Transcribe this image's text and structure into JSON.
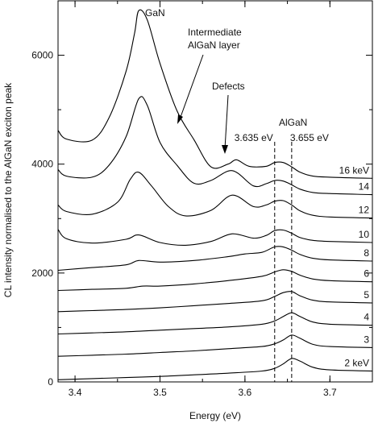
{
  "chart_data": {
    "type": "line",
    "title": "",
    "xlabel": "Energy (eV)",
    "ylabel": "CL intensity normalised to the AlGaN exciton peak",
    "xlim": [
      3.38,
      3.75
    ],
    "ylim": [
      0,
      7000
    ],
    "xticks": [
      3.4,
      3.5,
      3.6,
      3.7
    ],
    "yticks": [
      0,
      2000,
      4000,
      6000
    ],
    "grid": false,
    "reference_lines": [
      {
        "x": 3.635,
        "label": "3.635 eV",
        "style": "dashed"
      },
      {
        "x": 3.655,
        "label": "3.655 eV",
        "style": "dashed"
      }
    ],
    "annotations": [
      {
        "text": "GaN",
        "x": 3.475
      },
      {
        "text": "Intermediate",
        "text2": "AlGaN layer",
        "x": 3.52
      },
      {
        "text": "Defects",
        "x": 3.575
      },
      {
        "text": "AlGaN",
        "x": 3.64
      }
    ],
    "series": [
      {
        "label": "2 keV",
        "points": [
          [
            3.38,
            40
          ],
          [
            3.42,
            60
          ],
          [
            3.46,
            80
          ],
          [
            3.5,
            100
          ],
          [
            3.54,
            130
          ],
          [
            3.58,
            160
          ],
          [
            3.62,
            200
          ],
          [
            3.635,
            250
          ],
          [
            3.645,
            330
          ],
          [
            3.655,
            430
          ],
          [
            3.665,
            380
          ],
          [
            3.68,
            270
          ],
          [
            3.7,
            220
          ],
          [
            3.75,
            200
          ]
        ]
      },
      {
        "label": "3",
        "points": [
          [
            3.38,
            470
          ],
          [
            3.42,
            490
          ],
          [
            3.46,
            510
          ],
          [
            3.5,
            540
          ],
          [
            3.54,
            570
          ],
          [
            3.58,
            610
          ],
          [
            3.62,
            650
          ],
          [
            3.635,
            700
          ],
          [
            3.645,
            770
          ],
          [
            3.655,
            860
          ],
          [
            3.665,
            800
          ],
          [
            3.68,
            690
          ],
          [
            3.7,
            650
          ],
          [
            3.75,
            630
          ]
        ]
      },
      {
        "label": "4",
        "points": [
          [
            3.38,
            880
          ],
          [
            3.42,
            900
          ],
          [
            3.46,
            920
          ],
          [
            3.5,
            950
          ],
          [
            3.54,
            980
          ],
          [
            3.58,
            1010
          ],
          [
            3.62,
            1060
          ],
          [
            3.635,
            1120
          ],
          [
            3.645,
            1200
          ],
          [
            3.655,
            1270
          ],
          [
            3.665,
            1200
          ],
          [
            3.68,
            1100
          ],
          [
            3.7,
            1060
          ],
          [
            3.75,
            1040
          ]
        ]
      },
      {
        "label": "5",
        "points": [
          [
            3.38,
            1290
          ],
          [
            3.42,
            1310
          ],
          [
            3.46,
            1330
          ],
          [
            3.5,
            1360
          ],
          [
            3.54,
            1400
          ],
          [
            3.58,
            1440
          ],
          [
            3.62,
            1490
          ],
          [
            3.635,
            1570
          ],
          [
            3.645,
            1640
          ],
          [
            3.655,
            1660
          ],
          [
            3.665,
            1580
          ],
          [
            3.68,
            1500
          ],
          [
            3.7,
            1470
          ],
          [
            3.75,
            1450
          ]
        ]
      },
      {
        "label": "6",
        "points": [
          [
            3.38,
            1680
          ],
          [
            3.42,
            1700
          ],
          [
            3.46,
            1720
          ],
          [
            3.48,
            1760
          ],
          [
            3.5,
            1760
          ],
          [
            3.54,
            1800
          ],
          [
            3.58,
            1860
          ],
          [
            3.62,
            1940
          ],
          [
            3.635,
            2020
          ],
          [
            3.645,
            2060
          ],
          [
            3.655,
            2030
          ],
          [
            3.665,
            1960
          ],
          [
            3.68,
            1890
          ],
          [
            3.7,
            1860
          ],
          [
            3.75,
            1840
          ]
        ]
      },
      {
        "label": "8",
        "points": [
          [
            3.38,
            2050
          ],
          [
            3.42,
            2100
          ],
          [
            3.46,
            2150
          ],
          [
            3.475,
            2230
          ],
          [
            3.5,
            2200
          ],
          [
            3.54,
            2230
          ],
          [
            3.58,
            2300
          ],
          [
            3.6,
            2350
          ],
          [
            3.62,
            2380
          ],
          [
            3.635,
            2480
          ],
          [
            3.645,
            2480
          ],
          [
            3.655,
            2420
          ],
          [
            3.665,
            2340
          ],
          [
            3.68,
            2270
          ],
          [
            3.7,
            2240
          ],
          [
            3.75,
            2220
          ]
        ]
      },
      {
        "label": "10",
        "points": [
          [
            3.38,
            2800
          ],
          [
            3.39,
            2630
          ],
          [
            3.42,
            2550
          ],
          [
            3.46,
            2620
          ],
          [
            3.475,
            2700
          ],
          [
            3.5,
            2560
          ],
          [
            3.53,
            2510
          ],
          [
            3.56,
            2580
          ],
          [
            3.585,
            2720
          ],
          [
            3.61,
            2640
          ],
          [
            3.625,
            2690
          ],
          [
            3.635,
            2780
          ],
          [
            3.645,
            2790
          ],
          [
            3.655,
            2730
          ],
          [
            3.665,
            2650
          ],
          [
            3.68,
            2600
          ],
          [
            3.7,
            2580
          ],
          [
            3.75,
            2560
          ]
        ]
      },
      {
        "label": "12",
        "points": [
          [
            3.38,
            3250
          ],
          [
            3.39,
            3130
          ],
          [
            3.42,
            3080
          ],
          [
            3.45,
            3300
          ],
          [
            3.465,
            3720
          ],
          [
            3.475,
            3850
          ],
          [
            3.49,
            3600
          ],
          [
            3.51,
            3220
          ],
          [
            3.53,
            3050
          ],
          [
            3.56,
            3150
          ],
          [
            3.585,
            3430
          ],
          [
            3.61,
            3220
          ],
          [
            3.625,
            3250
          ],
          [
            3.635,
            3320
          ],
          [
            3.645,
            3330
          ],
          [
            3.655,
            3250
          ],
          [
            3.665,
            3140
          ],
          [
            3.68,
            3060
          ],
          [
            3.7,
            3030
          ],
          [
            3.75,
            3010
          ]
        ]
      },
      {
        "label": "14",
        "points": [
          [
            3.38,
            3900
          ],
          [
            3.39,
            3780
          ],
          [
            3.42,
            3760
          ],
          [
            3.44,
            3980
          ],
          [
            3.46,
            4500
          ],
          [
            3.475,
            5200
          ],
          [
            3.485,
            5080
          ],
          [
            3.5,
            4400
          ],
          [
            3.52,
            3980
          ],
          [
            3.54,
            3650
          ],
          [
            3.56,
            3700
          ],
          [
            3.585,
            3880
          ],
          [
            3.61,
            3600
          ],
          [
            3.625,
            3640
          ],
          [
            3.635,
            3700
          ],
          [
            3.645,
            3690
          ],
          [
            3.655,
            3620
          ],
          [
            3.665,
            3540
          ],
          [
            3.68,
            3480
          ],
          [
            3.7,
            3460
          ],
          [
            3.75,
            3440
          ]
        ]
      },
      {
        "label": "16 keV",
        "points": [
          [
            3.38,
            4620
          ],
          [
            3.39,
            4460
          ],
          [
            3.42,
            4440
          ],
          [
            3.44,
            4850
          ],
          [
            3.46,
            5700
          ],
          [
            3.47,
            6400
          ],
          [
            3.475,
            6820
          ],
          [
            3.485,
            6650
          ],
          [
            3.5,
            5850
          ],
          [
            3.52,
            4980
          ],
          [
            3.54,
            4450
          ],
          [
            3.56,
            3950
          ],
          [
            3.58,
            4000
          ],
          [
            3.59,
            4080
          ],
          [
            3.605,
            3960
          ],
          [
            3.625,
            3960
          ],
          [
            3.635,
            4030
          ],
          [
            3.645,
            4030
          ],
          [
            3.655,
            3950
          ],
          [
            3.665,
            3850
          ],
          [
            3.68,
            3780
          ],
          [
            3.7,
            3760
          ],
          [
            3.75,
            3740
          ]
        ]
      }
    ]
  }
}
